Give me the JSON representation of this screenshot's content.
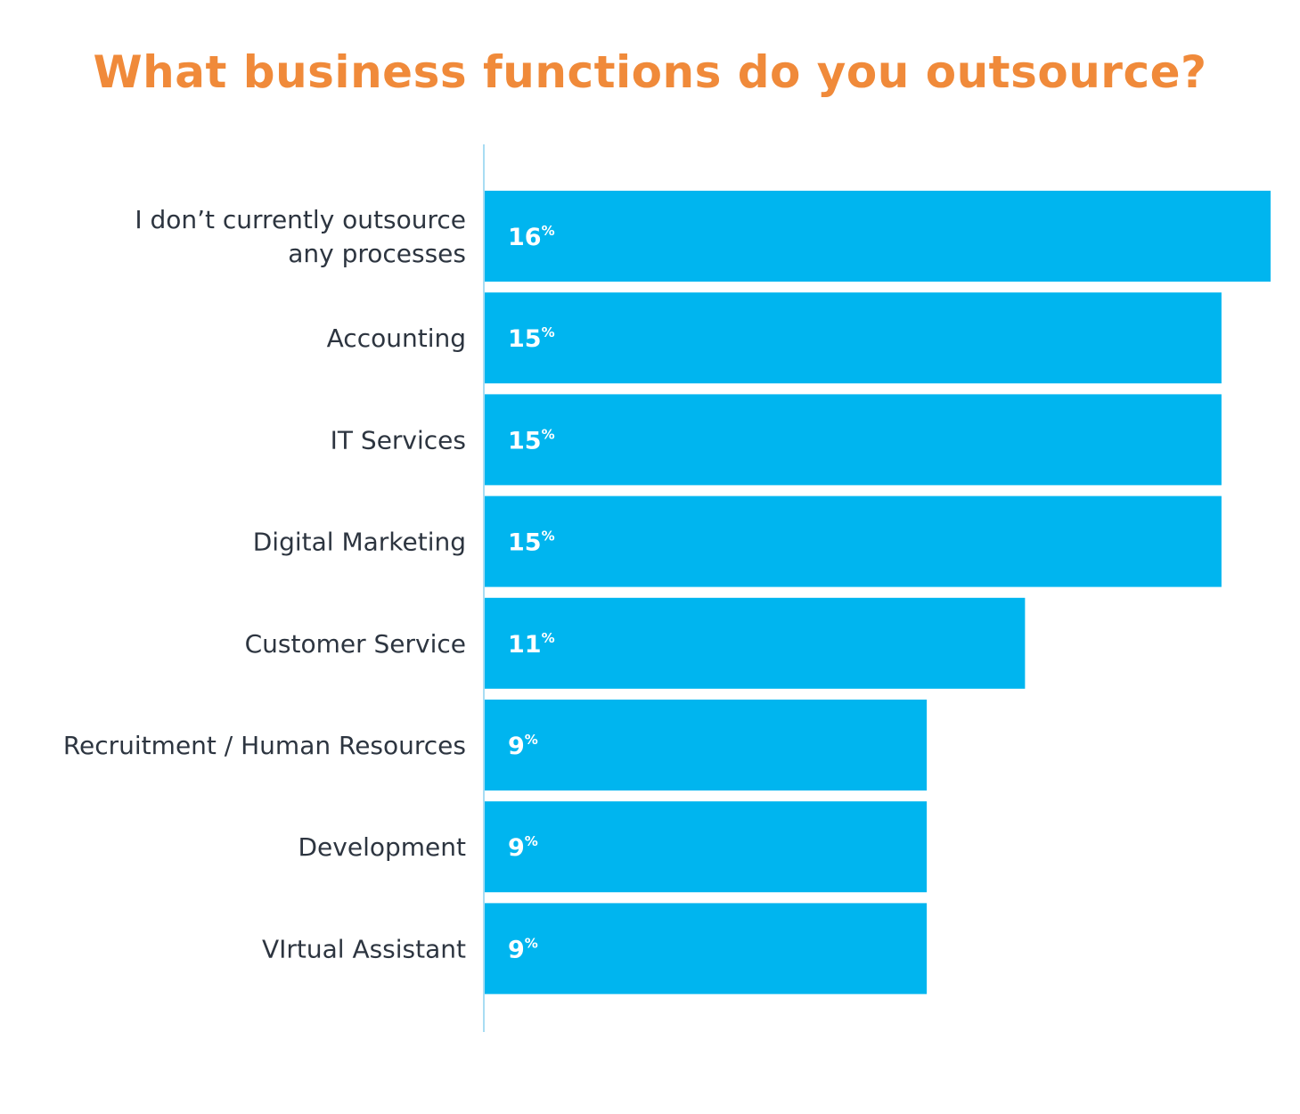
{
  "colors": {
    "title": "#f08a3a",
    "bar": "#00b5ef",
    "axis": "#a8dcf3",
    "label": "#2d3540",
    "value_text": "#ffffff"
  },
  "chart_data": {
    "type": "bar",
    "orientation": "horizontal",
    "title": "What business functions do you outsource?",
    "xlabel": "",
    "ylabel": "",
    "unit": "%",
    "grid": false,
    "legend": "none",
    "xlim": [
      0,
      16
    ],
    "categories": [
      [
        "I don’t currently outsource",
        "any processes"
      ],
      [
        "Accounting"
      ],
      [
        "IT Services"
      ],
      [
        "Digital Marketing"
      ],
      [
        "Customer Service"
      ],
      [
        "Recruitment / Human Resources"
      ],
      [
        "Development"
      ],
      [
        "VIrtual Assistant"
      ]
    ],
    "values": [
      16,
      15,
      15,
      15,
      11,
      9,
      9,
      9
    ],
    "value_labels": [
      "16",
      "15",
      "15",
      "15",
      "11",
      "9",
      "9",
      "9"
    ]
  }
}
